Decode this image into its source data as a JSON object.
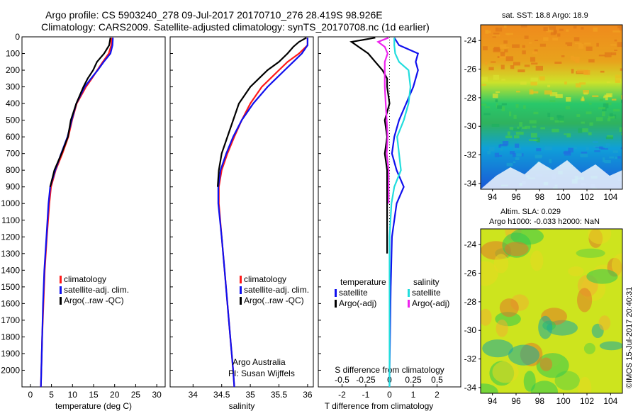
{
  "header": {
    "line1": "Argo profile: CS 5903240_278 09-Jul-2017 20170710_276 28.419S 98.926E",
    "line2": "Climatology: CARS2009. Satellite-adjusted climatology: synTS_20170708.nc (1d earlier)"
  },
  "colors": {
    "climatology": "#ff1a1a",
    "satellite": "#1010ee",
    "argo": "#000000",
    "sat_salinity": "#22dddd",
    "argo_salinity_adj": "#ee22ee"
  },
  "chart_data": [
    {
      "type": "line",
      "title": "",
      "xlabel": "temperature (deg C)",
      "ylabel": "",
      "xlim": [
        -2,
        32
      ],
      "ylim": [
        2100,
        0
      ],
      "xticks": [
        "0",
        "5",
        "10",
        "15",
        "20",
        "25",
        "30"
      ],
      "yticks": [
        "0",
        "100",
        "200",
        "300",
        "400",
        "500",
        "600",
        "700",
        "800",
        "900",
        "1000",
        "1100",
        "1200",
        "1300",
        "1400",
        "1500",
        "1600",
        "1700",
        "1800",
        "1900",
        "2000"
      ],
      "legend": [
        "climatology",
        "satellite-adj. clim.",
        "Argo(..raw -QC)"
      ],
      "series": [
        {
          "name": "climatology",
          "depth": [
            5,
            50,
            100,
            150,
            200,
            250,
            300,
            400,
            500,
            600,
            700,
            800,
            900,
            1000,
            1200,
            1400,
            1600,
            1800,
            2000,
            2100
          ],
          "values": [
            19.3,
            19.2,
            18.6,
            17.2,
            15.9,
            14.6,
            13.2,
            11.0,
            9.9,
            9.0,
            7.6,
            6.0,
            4.9,
            4.5,
            3.9,
            3.4,
            3.1,
            2.8,
            2.6,
            2.5
          ]
        },
        {
          "name": "satellite-adj. clim.",
          "depth": [
            5,
            50,
            100,
            150,
            200,
            250,
            300,
            400,
            500,
            600,
            700,
            800,
            900,
            1000,
            1200,
            1400,
            1600,
            1800,
            2000,
            2100
          ],
          "values": [
            19.6,
            19.5,
            19.0,
            17.4,
            16.0,
            14.4,
            12.9,
            10.9,
            9.8,
            8.8,
            7.3,
            5.9,
            4.7,
            4.3,
            3.8,
            3.3,
            3.0,
            2.8,
            2.6,
            2.5
          ]
        },
        {
          "name": "Argo(..raw -QC)",
          "depth": [
            5,
            50,
            100,
            150,
            200,
            250,
            300,
            400,
            500,
            600,
            700,
            800,
            900
          ],
          "values": [
            19.0,
            18.7,
            17.5,
            15.8,
            14.9,
            13.6,
            12.6,
            10.9,
            9.6,
            8.9,
            7.4,
            5.7,
            4.7
          ]
        }
      ]
    },
    {
      "type": "line",
      "title": "",
      "xlabel": "salinity",
      "ylabel": "",
      "xlim": [
        33.6,
        36.1
      ],
      "ylim": [
        2100,
        0
      ],
      "xticks": [
        "34",
        "34.5",
        "35",
        "35.5",
        "36"
      ],
      "legend": [
        "climatology",
        "satellite-adj. clim.",
        "Argo(..raw -QC)"
      ],
      "annotation": [
        "Argo Australia",
        "PI: Susan Wijffels"
      ],
      "series": [
        {
          "name": "climatology",
          "depth": [
            5,
            50,
            100,
            150,
            200,
            250,
            300,
            400,
            500,
            600,
            700,
            800,
            900,
            1000,
            1200,
            1400,
            1600,
            1800,
            2000,
            2100
          ],
          "values": [
            36.0,
            36.0,
            35.85,
            35.65,
            35.5,
            35.35,
            35.2,
            35.0,
            34.85,
            34.72,
            34.6,
            34.5,
            34.45,
            34.45,
            34.5,
            34.55,
            34.6,
            34.65,
            34.7,
            34.72
          ]
        },
        {
          "name": "satellite-adj. clim.",
          "depth": [
            5,
            50,
            100,
            150,
            200,
            250,
            300,
            400,
            500,
            600,
            700,
            800,
            900,
            1000,
            1200,
            1400,
            1600,
            1800,
            2000,
            2100
          ],
          "values": [
            36.0,
            36.0,
            35.9,
            35.75,
            35.6,
            35.45,
            35.3,
            35.05,
            34.85,
            34.7,
            34.58,
            34.48,
            34.44,
            34.44,
            34.5,
            34.55,
            34.6,
            34.65,
            34.7,
            34.72
          ]
        },
        {
          "name": "Argo(..raw -QC)",
          "depth": [
            5,
            30,
            60,
            100,
            150,
            200,
            250,
            300,
            400,
            500,
            600,
            700,
            800,
            900
          ],
          "values": [
            35.98,
            35.85,
            35.75,
            35.65,
            35.5,
            35.3,
            35.15,
            35.0,
            34.8,
            34.7,
            34.6,
            34.5,
            34.45,
            34.43
          ]
        }
      ]
    },
    {
      "type": "line",
      "title": "",
      "xlabel": "T difference from climatology",
      "xlabel2": "S difference from climatology",
      "xlim": [
        -3,
        3
      ],
      "xticks": [
        "-2",
        "-1",
        "0",
        "1",
        "2"
      ],
      "xticks_s": [
        "-0.5",
        "-0.25",
        "0",
        "0.25",
        "0.5"
      ],
      "ylim": [
        2100,
        0
      ],
      "legend_title_t": "temperature",
      "legend_title_s": "salinity",
      "legend": [
        "satellite",
        "Argo(-adj)",
        "satellite",
        "Argo(-adj)"
      ],
      "series": [
        {
          "name": "T satellite",
          "depth": [
            5,
            50,
            100,
            150,
            200,
            300,
            400,
            500,
            600,
            700,
            800,
            900,
            1000,
            1200,
            1500,
            2000,
            2100
          ],
          "values": [
            0.2,
            0.4,
            1.2,
            1.1,
            1.2,
            1.0,
            0.7,
            0.4,
            0.2,
            0.1,
            0.3,
            0.6,
            0.3,
            0.1,
            0.05,
            0.0,
            0.0
          ]
        },
        {
          "name": "T Argo(-adj)",
          "depth": [
            5,
            30,
            60,
            100,
            150,
            200,
            250,
            300,
            400,
            500,
            600,
            700,
            800,
            900,
            1000,
            1300
          ],
          "values": [
            -0.6,
            -1.6,
            -1.3,
            -0.9,
            -0.6,
            -0.3,
            -0.1,
            -0.1,
            0.0,
            -0.2,
            -0.1,
            -0.2,
            -0.1,
            -0.1,
            -0.1,
            -0.1
          ]
        },
        {
          "name": "S satellite",
          "depth": [
            5,
            50,
            100,
            150,
            200,
            300,
            400,
            500,
            600,
            700,
            800,
            900,
            1000,
            1200,
            1500,
            2000,
            2100
          ],
          "values": [
            0.05,
            0.05,
            0.06,
            0.1,
            0.2,
            0.22,
            0.2,
            0.15,
            0.08,
            0.1,
            0.12,
            0.05,
            0.02,
            0.0,
            0.0,
            0.0,
            0.0
          ]
        },
        {
          "name": "S Argo(-adj)",
          "depth": [
            5,
            30,
            60,
            100,
            150,
            200,
            250,
            300,
            400,
            500,
            600,
            700,
            800,
            900,
            1000
          ],
          "values": [
            -0.01,
            -0.12,
            -0.05,
            -0.02,
            -0.05,
            -0.05,
            -0.05,
            -0.05,
            -0.04,
            -0.03,
            -0.02,
            -0.03,
            -0.01,
            -0.01,
            -0.01
          ]
        }
      ]
    }
  ],
  "maps": {
    "sst_title": "sat. SST: 18.8 Argo: 18.9",
    "sla_title1": "Altim. SLA: 0.029",
    "sla_title2": "Argo h1000: -0.033 h2000: NaN",
    "yticks": [
      "-24",
      "-26",
      "-28",
      "-30",
      "-32",
      "-34"
    ],
    "xticks": [
      "94",
      "96",
      "98",
      "100",
      "102",
      "104"
    ]
  },
  "stamp": "©IMOS 15-Jul-2017 20:40:31"
}
